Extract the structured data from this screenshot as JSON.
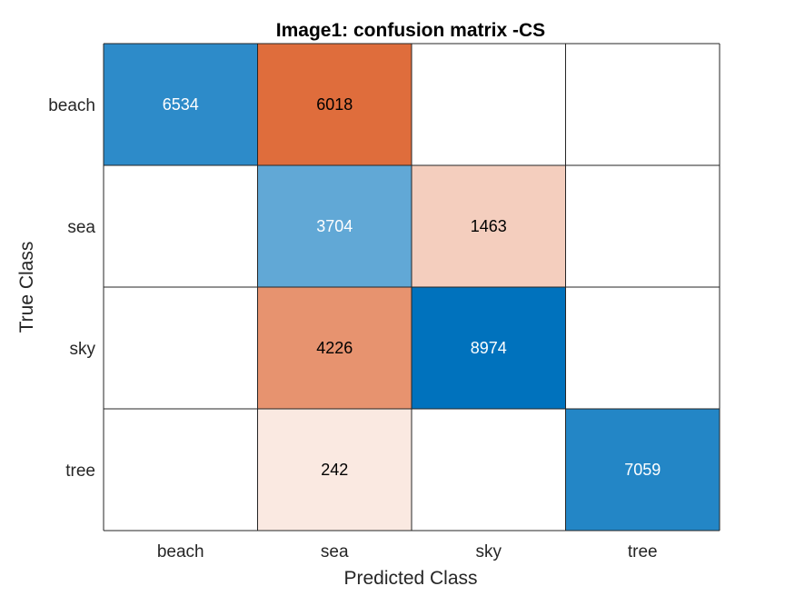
{
  "chart_data": {
    "type": "heatmap",
    "title": "Image1: confusion matrix -CS",
    "xlabel": "Predicted Class",
    "ylabel": "True Class",
    "row_labels": [
      "beach",
      "sea",
      "sky",
      "tree"
    ],
    "col_labels": [
      "beach",
      "sea",
      "sky",
      "tree"
    ],
    "matrix": [
      [
        6534,
        6018,
        0,
        0
      ],
      [
        0,
        3704,
        1463,
        0
      ],
      [
        0,
        4226,
        8974,
        0
      ],
      [
        0,
        242,
        0,
        7059
      ]
    ],
    "zero_cells_blank": true,
    "colors": {
      "diagonal_dark": "#0072bd",
      "offdiag_dark": "#d95319",
      "background": "#ffffff",
      "grid": "#262626",
      "text_dark": "#000000",
      "text_light": "#ffffff"
    }
  }
}
